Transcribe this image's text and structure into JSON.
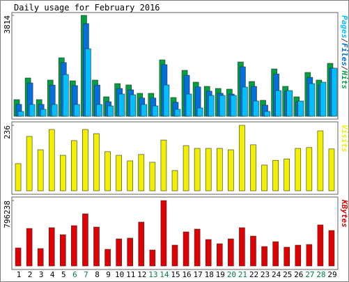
{
  "title": "Daily usage for February 2016",
  "categories": [
    "1",
    "2",
    "3",
    "4",
    "5",
    "6",
    "7",
    "8",
    "9",
    "10",
    "11",
    "12",
    "13",
    "14",
    "15",
    "16",
    "17",
    "18",
    "19",
    "20",
    "21",
    "22",
    "23",
    "24",
    "25",
    "26",
    "27",
    "28",
    "29"
  ],
  "category_colors": [
    "#000000",
    "#000000",
    "#000000",
    "#000000",
    "#000000",
    "#008040",
    "#008040",
    "#000000",
    "#000000",
    "#000000",
    "#000000",
    "#000000",
    "#008040",
    "#008040",
    "#000000",
    "#000000",
    "#000000",
    "#000000",
    "#000000",
    "#008040",
    "#008040",
    "#000000",
    "#000000",
    "#000000",
    "#000000",
    "#000000",
    "#008040",
    "#008040",
    "#000000"
  ],
  "legend_separator": "/",
  "chart_data": [
    {
      "type": "bar",
      "ylim": [
        0,
        3814
      ],
      "yticks": [
        3814
      ],
      "series": [
        {
          "name": "Hits",
          "color": "#00a040",
          "values": [
            630,
            1447,
            630,
            1368,
            2210,
            1341,
            3814,
            1368,
            736,
            1236,
            1184,
            868,
            868,
            2131,
            710,
            1736,
            1289,
            1131,
            1052,
            1026,
            2052,
            1315,
            605,
            1789,
            1131,
            736,
            1657,
            1368,
            2000
          ]
        },
        {
          "name": "Files",
          "color": "#0070e0",
          "values": [
            450,
            1260,
            450,
            1180,
            2030,
            1160,
            3500,
            1180,
            550,
            1050,
            1000,
            690,
            690,
            1950,
            530,
            1550,
            1110,
            950,
            870,
            840,
            1870,
            1130,
            420,
            1600,
            950,
            550,
            1470,
            1180,
            1820
          ]
        },
        {
          "name": "Pages",
          "color": "#00c0ff",
          "values": [
            184,
            447,
            263,
            447,
            1578,
            447,
            2551,
            447,
            394,
            842,
            815,
            447,
            394,
            1184,
            263,
            842,
            315,
            789,
            789,
            789,
            1105,
            578,
            184,
            973,
            973,
            578,
            1236,
            1289,
            1815
          ]
        }
      ]
    },
    {
      "type": "bar",
      "ylim": [
        0,
        236
      ],
      "yticks": [
        236
      ],
      "series": [
        {
          "name": "Visits",
          "color": "#f0f000",
          "values": [
            98,
            196,
            148,
            221,
            128,
            181,
            221,
            206,
            141,
            128,
            108,
            131,
            103,
            183,
            73,
            163,
            153,
            153,
            153,
            148,
            236,
            166,
            93,
            110,
            115,
            153,
            156,
            216,
            151
          ]
        }
      ]
    },
    {
      "type": "bar",
      "ylim": [
        0,
        796238
      ],
      "yticks": [
        796238
      ],
      "series": [
        {
          "name": "KBytes",
          "color": "#e00000",
          "values": [
            220000,
            457000,
            212000,
            466000,
            381000,
            491000,
            635000,
            474000,
            203000,
            330000,
            339000,
            534000,
            195000,
            796238,
            254000,
            415000,
            449000,
            322000,
            271000,
            330000,
            466000,
            364000,
            237000,
            296000,
            229000,
            254000,
            262000,
            500000,
            432000
          ]
        }
      ]
    }
  ]
}
